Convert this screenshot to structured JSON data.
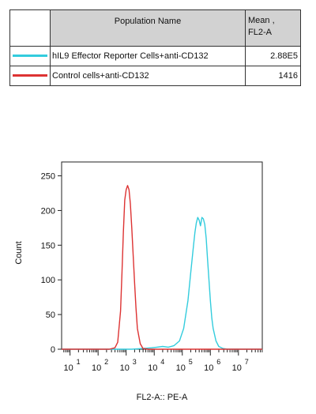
{
  "legend": {
    "header_name": "Population Name",
    "header_mean_line1": "Mean ,",
    "header_mean_line2": "FL2-A",
    "rows": [
      {
        "name": "hIL9 Effector Reporter Cells+anti-CD132",
        "mean": "2.88E5",
        "color": "#33ccdd"
      },
      {
        "name": "Control cells+anti-CD132",
        "mean": "1416",
        "color": "#dd3333"
      }
    ]
  },
  "chart_data": {
    "type": "line",
    "title": "",
    "xlabel": "FL2-A:: PE-A",
    "ylabel": "Count",
    "x_scale": "log10",
    "xlim": [
      0.7,
      7.85
    ],
    "ylim": [
      0,
      270
    ],
    "y_ticks": [
      0,
      50,
      100,
      150,
      200,
      250
    ],
    "x_ticks": [
      {
        "base": "10",
        "exp": "1",
        "value": 1
      },
      {
        "base": "10",
        "exp": "2",
        "value": 2
      },
      {
        "base": "10",
        "exp": "3",
        "value": 3
      },
      {
        "base": "10",
        "exp": "4",
        "value": 4
      },
      {
        "base": "10",
        "exp": "5",
        "value": 5
      },
      {
        "base": "10",
        "exp": "6",
        "value": 6
      },
      {
        "base": "10",
        "exp": "7",
        "value": 7
      }
    ],
    "series": [
      {
        "name": "hIL9 Effector Reporter Cells+anti-CD132",
        "color": "#33ccdd",
        "x": [
          0.7,
          2.0,
          3.2,
          3.6,
          3.9,
          4.1,
          4.3,
          4.5,
          4.7,
          4.9,
          5.05,
          5.2,
          5.3,
          5.4,
          5.45,
          5.5,
          5.55,
          5.6,
          5.65,
          5.7,
          5.75,
          5.8,
          5.85,
          5.9,
          5.95,
          6.0,
          6.05,
          6.1,
          6.2,
          6.3,
          6.45,
          6.6,
          7.85
        ],
        "y": [
          0,
          0,
          0,
          1,
          2,
          3,
          4,
          3,
          5,
          12,
          30,
          70,
          110,
          150,
          168,
          182,
          190,
          186,
          178,
          190,
          188,
          180,
          160,
          130,
          100,
          70,
          45,
          30,
          12,
          4,
          1,
          0,
          0
        ]
      },
      {
        "name": "Control cells+anti-CD132",
        "color": "#dd3333",
        "x": [
          0.7,
          2.4,
          2.6,
          2.7,
          2.8,
          2.85,
          2.9,
          2.95,
          3.0,
          3.05,
          3.1,
          3.15,
          3.2,
          3.25,
          3.3,
          3.35,
          3.4,
          3.5,
          3.6,
          3.8,
          7.85
        ],
        "y": [
          0,
          0,
          2,
          10,
          55,
          110,
          170,
          215,
          230,
          236,
          230,
          210,
          175,
          135,
          95,
          60,
          30,
          8,
          1,
          0,
          0
        ]
      }
    ]
  }
}
